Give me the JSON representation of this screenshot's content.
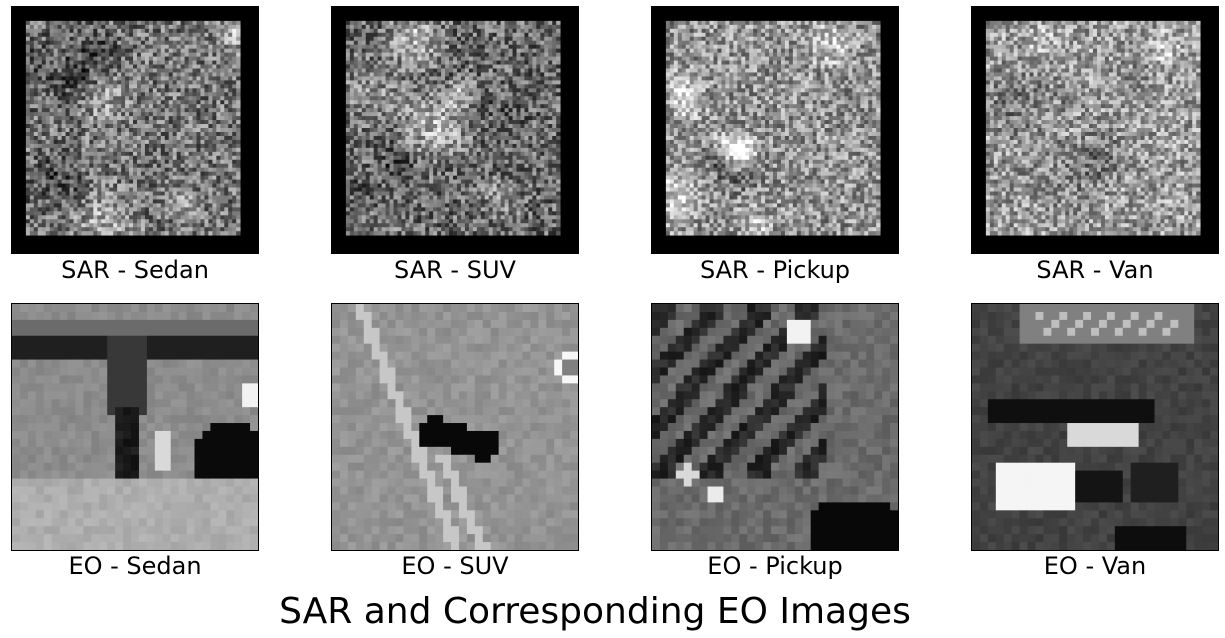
{
  "figure": {
    "title": "SAR and Corresponding EO Images"
  },
  "rows": [
    {
      "kind": "SAR",
      "panels": [
        {
          "label": "SAR - Sedan",
          "seed": 11,
          "base": 0.46
        },
        {
          "label": "SAR - SUV",
          "seed": 23,
          "base": 0.42
        },
        {
          "label": "SAR - Pickup",
          "seed": 37,
          "base": 0.58
        },
        {
          "label": "SAR - Van",
          "seed": 53,
          "base": 0.62
        }
      ]
    },
    {
      "kind": "EO",
      "panels": [
        {
          "label": "EO - Sedan",
          "scene": "sedan"
        },
        {
          "label": "EO - SUV",
          "scene": "suv"
        },
        {
          "label": "EO - Pickup",
          "scene": "pickup"
        },
        {
          "label": "EO - Van",
          "scene": "van"
        }
      ]
    }
  ]
}
